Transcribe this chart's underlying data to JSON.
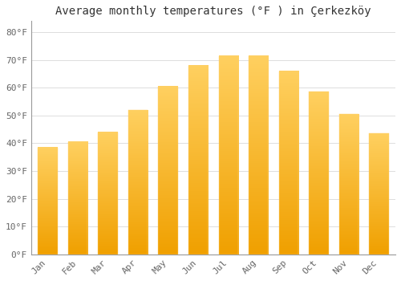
{
  "title": "Average monthly temperatures (°F ) in Çerkezköy",
  "months": [
    "Jan",
    "Feb",
    "Mar",
    "Apr",
    "May",
    "Jun",
    "Jul",
    "Aug",
    "Sep",
    "Oct",
    "Nov",
    "Dec"
  ],
  "values": [
    38.5,
    40.5,
    44,
    52,
    60.5,
    68,
    71.5,
    71.5,
    66,
    58.5,
    50.5,
    43.5
  ],
  "bar_color_bottom": "#F0A000",
  "bar_color_top": "#FFD060",
  "bar_color_mid": "#FFB020",
  "background_color": "#FFFFFF",
  "grid_color": "#DDDDDD",
  "yticks": [
    0,
    10,
    20,
    30,
    40,
    50,
    60,
    70,
    80
  ],
  "ylim": [
    0,
    84
  ],
  "title_fontsize": 10,
  "tick_fontsize": 8,
  "font_family": "monospace"
}
